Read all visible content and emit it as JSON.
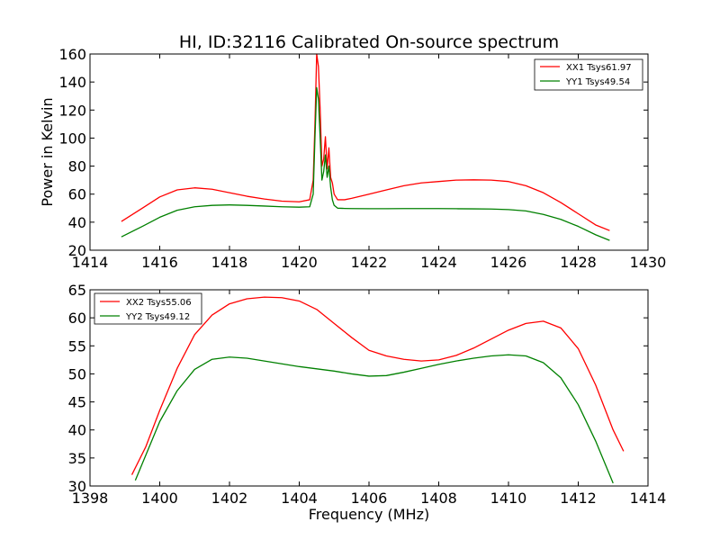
{
  "figure": {
    "title": "HI, ID:32116 Calibrated On-source spectrum"
  },
  "chart_data": [
    {
      "type": "line",
      "title": "HI, ID:32116 Calibrated On-source spectrum",
      "xlabel": "",
      "ylabel": "Power in Kelvin",
      "xlim": [
        1414,
        1430
      ],
      "ylim": [
        20,
        160
      ],
      "xticks": [
        1414,
        1416,
        1418,
        1420,
        1422,
        1424,
        1426,
        1428,
        1430
      ],
      "yticks": [
        20,
        40,
        60,
        80,
        100,
        120,
        140,
        160
      ],
      "grid": false,
      "legend_position": "top-right",
      "series": [
        {
          "name": "XX1 Tsys61.97",
          "color": "#ff0000",
          "x": [
            1414.9,
            1415.5,
            1416.0,
            1416.5,
            1417.0,
            1417.5,
            1418.0,
            1418.5,
            1419.0,
            1419.5,
            1420.0,
            1420.3,
            1420.4,
            1420.45,
            1420.5,
            1420.55,
            1420.6,
            1420.65,
            1420.7,
            1420.75,
            1420.8,
            1420.85,
            1420.9,
            1420.95,
            1421.0,
            1421.1,
            1421.3,
            1421.5,
            1422.0,
            1422.5,
            1423.0,
            1423.5,
            1424.0,
            1424.5,
            1425.0,
            1425.5,
            1426.0,
            1426.5,
            1427.0,
            1427.5,
            1428.0,
            1428.5,
            1428.9
          ],
          "y": [
            40.5,
            50,
            58,
            63,
            64.5,
            63.5,
            61,
            58.5,
            56.5,
            55,
            54.5,
            56,
            70,
            110,
            160,
            151,
            120,
            80,
            85,
            101,
            78,
            93,
            72,
            68,
            60,
            56,
            56,
            57,
            60,
            63,
            66,
            68,
            69,
            70,
            70.2,
            70,
            69,
            66,
            61,
            54,
            46,
            38,
            34
          ]
        },
        {
          "name": "YY1 Tsys49.54",
          "color": "#008000",
          "x": [
            1414.9,
            1415.5,
            1416.0,
            1416.5,
            1417.0,
            1417.5,
            1418.0,
            1418.5,
            1419.0,
            1419.5,
            1420.0,
            1420.3,
            1420.4,
            1420.45,
            1420.5,
            1420.55,
            1420.6,
            1420.65,
            1420.7,
            1420.75,
            1420.8,
            1420.85,
            1420.9,
            1420.95,
            1421.0,
            1421.1,
            1421.3,
            1421.5,
            1422.0,
            1422.5,
            1423.0,
            1423.5,
            1424.0,
            1424.5,
            1425.0,
            1425.5,
            1426.0,
            1426.5,
            1427.0,
            1427.5,
            1428.0,
            1428.5,
            1428.9
          ],
          "y": [
            29.5,
            37,
            43.5,
            48.5,
            51,
            52,
            52.3,
            52,
            51.5,
            51,
            50.7,
            51,
            60,
            100,
            136,
            128,
            100,
            70,
            76,
            88,
            72,
            80,
            65,
            56,
            52,
            50,
            49.8,
            49.7,
            49.6,
            49.6,
            49.7,
            49.7,
            49.7,
            49.6,
            49.5,
            49.4,
            49,
            48,
            45.5,
            42,
            37,
            31,
            27
          ]
        }
      ]
    },
    {
      "type": "line",
      "title": "",
      "xlabel": "Frequency (MHz)",
      "ylabel": "",
      "xlim": [
        1398,
        1414
      ],
      "ylim": [
        30,
        65
      ],
      "xticks": [
        1398,
        1400,
        1402,
        1404,
        1406,
        1408,
        1410,
        1412,
        1414
      ],
      "yticks": [
        30,
        35,
        40,
        45,
        50,
        55,
        60,
        65
      ],
      "grid": false,
      "legend_position": "top-left",
      "series": [
        {
          "name": "XX2 Tsys55.06",
          "color": "#ff0000",
          "x": [
            1399.2,
            1399.6,
            1400.0,
            1400.5,
            1401.0,
            1401.5,
            1402.0,
            1402.5,
            1403.0,
            1403.5,
            1404.0,
            1404.5,
            1405.0,
            1405.5,
            1406.0,
            1406.5,
            1407.0,
            1407.5,
            1408.0,
            1408.5,
            1409.0,
            1409.5,
            1410.0,
            1410.5,
            1411.0,
            1411.5,
            1412.0,
            1412.5,
            1413.0,
            1413.3
          ],
          "y": [
            32,
            37,
            43.5,
            51,
            57,
            60.5,
            62.5,
            63.4,
            63.7,
            63.6,
            63,
            61.5,
            59,
            56.5,
            54.2,
            53.2,
            52.6,
            52.3,
            52.5,
            53.3,
            54.6,
            56.2,
            57.8,
            59,
            59.4,
            58.2,
            54.5,
            48,
            40,
            36.2
          ]
        },
        {
          "name": "YY2 Tsys49.12",
          "color": "#008000",
          "x": [
            1399.3,
            1399.6,
            1400.0,
            1400.5,
            1401.0,
            1401.5,
            1402.0,
            1402.5,
            1403.0,
            1403.5,
            1404.0,
            1404.5,
            1405.0,
            1405.5,
            1406.0,
            1406.5,
            1407.0,
            1407.5,
            1408.0,
            1408.5,
            1409.0,
            1409.5,
            1410.0,
            1410.5,
            1411.0,
            1411.5,
            1412.0,
            1412.5,
            1413.0
          ],
          "y": [
            31,
            35.5,
            41.5,
            47,
            50.8,
            52.6,
            53,
            52.8,
            52.3,
            51.8,
            51.3,
            50.9,
            50.5,
            50,
            49.6,
            49.7,
            50.3,
            51,
            51.7,
            52.3,
            52.8,
            53.2,
            53.4,
            53.2,
            52,
            49.3,
            44.5,
            38,
            30.5
          ]
        }
      ]
    }
  ]
}
